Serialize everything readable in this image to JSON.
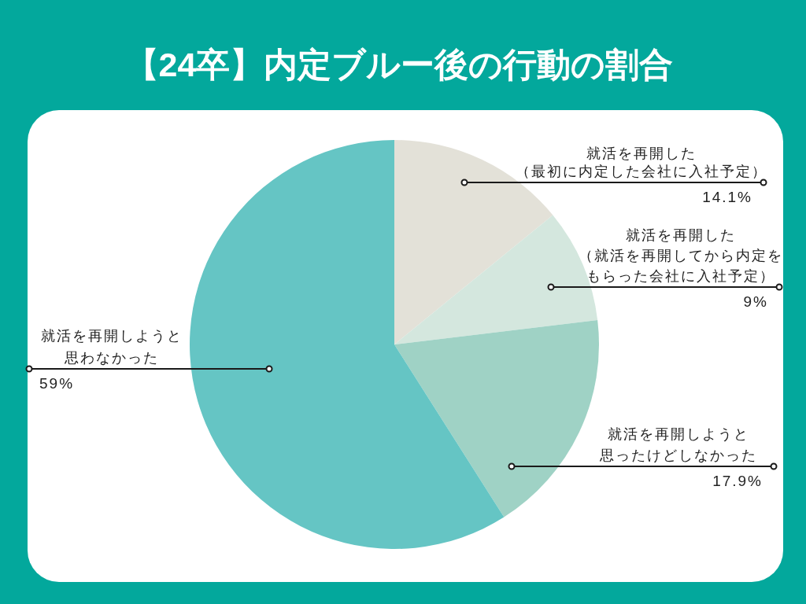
{
  "chart_data": {
    "type": "pie",
    "title": "【24卒】内定ブルー後の行動の割合",
    "categories": [
      "就活を再開した（最初に内定した会社に入社予定）",
      "就活を再開した（就活を再開してから内定をもらった会社に入社予定）",
      "就活を再開しようと思ったけどしなかった",
      "就活を再開しようと思わなかった"
    ],
    "values": [
      14.1,
      9,
      17.9,
      59
    ],
    "colors": [
      "#e3e1d8",
      "#d4e7de",
      "#9fd2c5",
      "#65c5c4"
    ],
    "value_labels": [
      "14.1%",
      "9%",
      "17.9%",
      "59%"
    ]
  }
}
